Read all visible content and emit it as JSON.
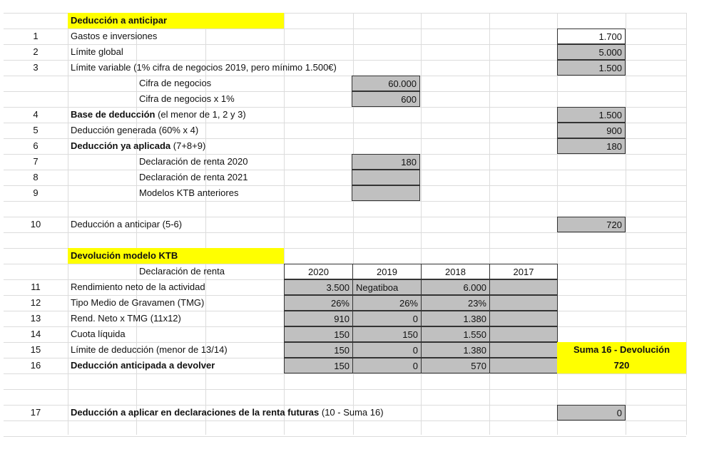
{
  "section1": {
    "title": "Deducción a anticipar",
    "rows": [
      {
        "num": "1",
        "label": "Gastos e inversiones",
        "value": "1.700"
      },
      {
        "num": "2",
        "label": "Límite global",
        "value": "5.000"
      },
      {
        "num": "3",
        "label": "Límite variable (1% cifra de negocios 2019, pero mínimo 1.500€)",
        "value": "1.500"
      },
      {
        "num": "",
        "label": "Cifra de negocios",
        "value": "60.000"
      },
      {
        "num": "",
        "label": "Cifra de negocios x 1%",
        "value": "600"
      },
      {
        "num": "4",
        "label_bold": "Base de deducción",
        "label": " (el menor de 1, 2 y 3)",
        "value": "1.500"
      },
      {
        "num": "5",
        "label": "Deducción generada (60% x 4)",
        "value": "900"
      },
      {
        "num": "6",
        "label_bold": "Deducción ya aplicada",
        "label": " (7+8+9)",
        "value": "180"
      },
      {
        "num": "7",
        "label": "Declaración de renta 2020",
        "value": "180"
      },
      {
        "num": "8",
        "label": "Declaración de renta 2021",
        "value": ""
      },
      {
        "num": "9",
        "label": "Modelos KTB anteriores",
        "value": ""
      },
      {
        "num": "10",
        "label": "Deducción a anticipar (5-6)",
        "value": "720"
      }
    ]
  },
  "section2": {
    "title": "Devolución modelo KTB",
    "header_label": "Declaración de renta",
    "years": [
      "2020",
      "2019",
      "2018",
      "2017"
    ],
    "rows": [
      {
        "num": "11",
        "label": "Rendimiento neto de la actividad",
        "values": [
          "3.500",
          "Negatiboa",
          "6.000",
          ""
        ]
      },
      {
        "num": "12",
        "label": "Tipo Medio de Gravamen (TMG)",
        "values": [
          "26%",
          "26%",
          "23%",
          ""
        ]
      },
      {
        "num": "13",
        "label": "Rend. Neto x TMG (11x12)",
        "values": [
          "910",
          "0",
          "1.380",
          ""
        ]
      },
      {
        "num": "14",
        "label": "Cuota líquida",
        "values": [
          "150",
          "150",
          "1.550",
          ""
        ]
      },
      {
        "num": "15",
        "label": "Límite de deducción (menor de 13/14)",
        "values": [
          "150",
          "0",
          "1.380",
          ""
        ]
      },
      {
        "num": "16",
        "label": "Deducción anticipada a devolver",
        "values": [
          "150",
          "0",
          "570",
          ""
        ]
      }
    ],
    "sum_label": "Suma 16 - Devolución",
    "sum_value": "720"
  },
  "final": {
    "num": "17",
    "label_bold": "Deducción a aplicar en declaraciones de la renta futuras",
    "label": " (10 - Suma 16)",
    "value": "0"
  },
  "colors": {
    "highlight": "#ffff00",
    "cell_fill": "#c0c0c0",
    "gridline": "#dcdcdc"
  }
}
